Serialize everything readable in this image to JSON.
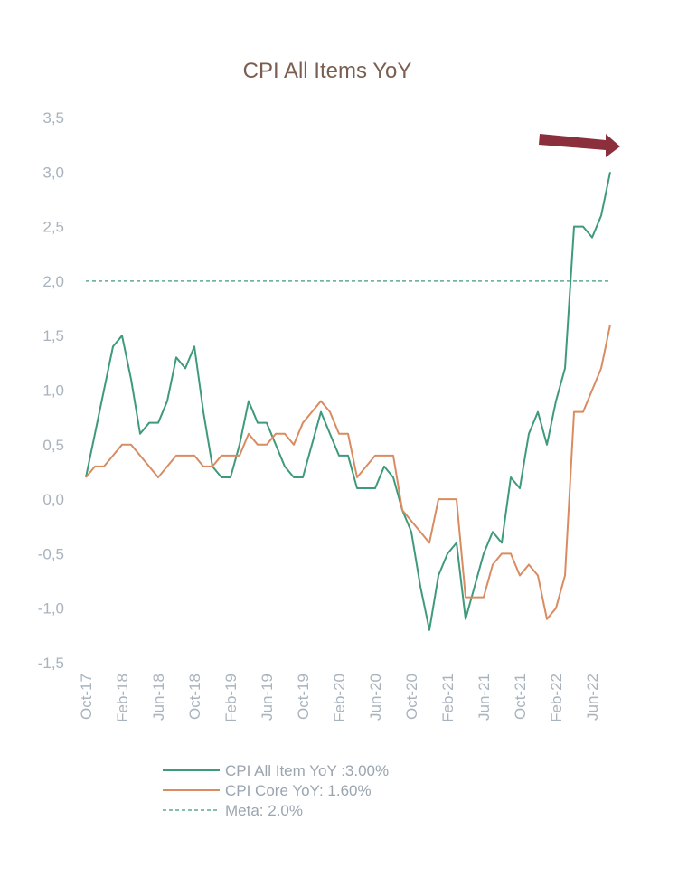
{
  "chart_data": {
    "type": "line",
    "title": "CPI All Items YoY",
    "xlabel": "",
    "ylabel": "",
    "ylim": [
      -1.5,
      3.5
    ],
    "yticks": [
      "3,5",
      "3,0",
      "2,5",
      "2,0",
      "1,5",
      "1,0",
      "0,5",
      "0,0",
      "-0,5",
      "-1,0",
      "-1,5"
    ],
    "ytick_values": [
      3.5,
      3.0,
      2.5,
      2.0,
      1.5,
      1.0,
      0.5,
      0.0,
      -0.5,
      -1.0,
      -1.5
    ],
    "xticks": [
      "Oct-17",
      "Feb-18",
      "Jun-18",
      "Oct-18",
      "Feb-19",
      "Jun-19",
      "Oct-19",
      "Feb-20",
      "Jun-20",
      "Oct-20",
      "Feb-21",
      "Jun-21",
      "Oct-21",
      "Feb-22",
      "Jun-22"
    ],
    "xtick_step_months": 4,
    "x_start": "Oct-17",
    "grid": false,
    "legend_position": "bottom",
    "series": [
      {
        "name": "CPI All Item YoY :3.00%",
        "color": "#3f9a7c",
        "style": "solid",
        "values": [
          0.2,
          0.6,
          1.0,
          1.4,
          1.5,
          1.1,
          0.6,
          0.7,
          0.7,
          0.9,
          1.3,
          1.2,
          1.4,
          0.8,
          0.3,
          0.2,
          0.2,
          0.5,
          0.9,
          0.7,
          0.7,
          0.5,
          0.3,
          0.2,
          0.2,
          0.5,
          0.8,
          0.6,
          0.4,
          0.4,
          0.1,
          0.1,
          0.1,
          0.3,
          0.2,
          -0.1,
          -0.3,
          -0.8,
          -1.2,
          -0.7,
          -0.5,
          -0.4,
          -1.1,
          -0.8,
          -0.5,
          -0.3,
          -0.4,
          0.2,
          0.1,
          0.6,
          0.8,
          0.5,
          0.9,
          1.2,
          2.5,
          2.5,
          2.4,
          2.6,
          3.0
        ]
      },
      {
        "name": "CPI Core YoY: 1.60%",
        "color": "#d98c62",
        "style": "solid",
        "values": [
          0.2,
          0.3,
          0.3,
          0.4,
          0.5,
          0.5,
          0.4,
          0.3,
          0.2,
          0.3,
          0.4,
          0.4,
          0.4,
          0.3,
          0.3,
          0.4,
          0.4,
          0.4,
          0.6,
          0.5,
          0.5,
          0.6,
          0.6,
          0.5,
          0.7,
          0.8,
          0.9,
          0.8,
          0.6,
          0.6,
          0.2,
          0.3,
          0.4,
          0.4,
          0.4,
          -0.1,
          -0.2,
          -0.3,
          -0.4,
          0.0,
          0.0,
          0.0,
          -0.9,
          -0.9,
          -0.9,
          -0.6,
          -0.5,
          -0.5,
          -0.7,
          -0.6,
          -0.7,
          -1.1,
          -1.0,
          -0.7,
          0.8,
          0.8,
          1.0,
          1.2,
          1.6
        ]
      },
      {
        "name": "Meta: 2.0%",
        "color": "#5faa8e",
        "style": "dashed",
        "constant": 2.0
      }
    ],
    "annotations": [
      {
        "type": "arrow",
        "direction": "right",
        "color": "#8b2f3c"
      }
    ]
  }
}
